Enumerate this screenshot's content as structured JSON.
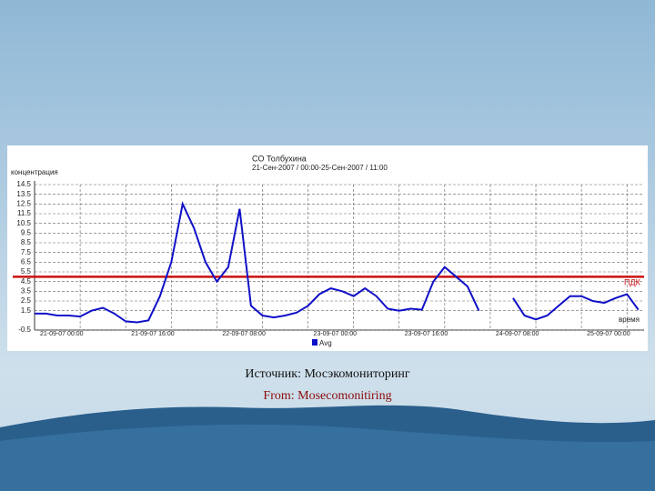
{
  "chart_data": {
    "type": "line",
    "title": "CO Толбухина",
    "subtitle": "21-Сен-2007 / 00:00-25-Сен-2007 / 11:00",
    "y_label": "концентрация",
    "x_label": "время",
    "categories": [
      "21-09-07 00:00",
      null,
      null,
      null,
      null,
      null,
      null,
      null,
      "21-09-07 16:00",
      null,
      null,
      null,
      null,
      null,
      null,
      null,
      "22-09-07 08:00",
      null,
      null,
      null,
      null,
      null,
      null,
      null,
      "23-09-07 00:00",
      null,
      null,
      null,
      null,
      null,
      null,
      null,
      "23-09-07 16:00",
      null,
      null,
      null,
      null,
      null,
      null,
      null,
      "24-09-07 08:00",
      null,
      null,
      null,
      null,
      null,
      null,
      null,
      "25-09-07 00:00",
      null,
      null,
      null,
      null,
      null
    ],
    "series": [
      {
        "name": "Avg",
        "color": "#1010c8",
        "values": [
          1.2,
          1.2,
          1.0,
          1.0,
          0.9,
          1.5,
          1.8,
          1.2,
          0.4,
          0.3,
          0.5,
          3.0,
          6.5,
          12.5,
          10.0,
          6.5,
          4.5,
          6.0,
          12.0,
          2.0,
          1.0,
          0.8,
          1.0,
          1.3,
          2.0,
          3.2,
          3.8,
          3.5,
          3.0,
          3.8,
          3.0,
          1.7,
          1.5,
          1.7,
          1.6,
          4.5,
          6.0,
          5.0,
          4.0,
          1.5,
          null,
          null,
          2.8,
          1.0,
          0.6,
          1.0,
          2.0,
          3.0,
          3.0,
          2.5,
          2.3,
          2.8,
          3.2,
          1.6
        ]
      }
    ],
    "threshold": {
      "label": "ПДК",
      "value": 5.0,
      "color": "#cc1010"
    },
    "ylim": [
      -0.5,
      14.5
    ],
    "yticks": [
      -0.5,
      1.5,
      2.5,
      3.5,
      4.5,
      5.5,
      6.5,
      7.5,
      8.5,
      9.5,
      10.5,
      11.5,
      12.5,
      13.5,
      14.5
    ],
    "grid": true
  },
  "caption": {
    "source_ru": "Источник: Мосэкомониторинг",
    "source_en": "From: Mosecomonitiring"
  }
}
